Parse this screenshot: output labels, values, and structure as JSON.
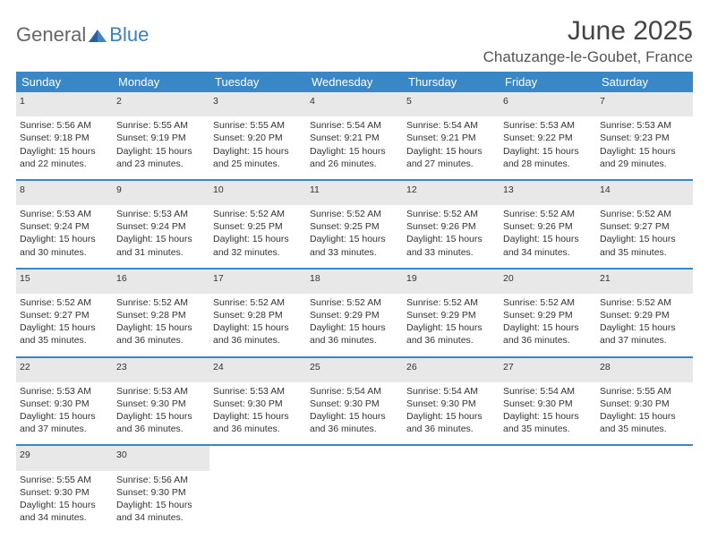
{
  "brand": {
    "part1": "General",
    "part2": "Blue"
  },
  "title": "June 2025",
  "location": "Chatuzange-le-Goubet, France",
  "colors": {
    "header_bg": "#3a87c7",
    "header_text": "#ffffff",
    "daynum_bg": "#e8e8e8",
    "week_border": "#3a87c7",
    "brand_gray": "#666666",
    "brand_blue": "#3a7fc4"
  },
  "weekdays": [
    "Sunday",
    "Monday",
    "Tuesday",
    "Wednesday",
    "Thursday",
    "Friday",
    "Saturday"
  ],
  "weeks": [
    [
      {
        "day": "1",
        "sunrise": "Sunrise: 5:56 AM",
        "sunset": "Sunset: 9:18 PM",
        "d1": "Daylight: 15 hours",
        "d2": "and 22 minutes."
      },
      {
        "day": "2",
        "sunrise": "Sunrise: 5:55 AM",
        "sunset": "Sunset: 9:19 PM",
        "d1": "Daylight: 15 hours",
        "d2": "and 23 minutes."
      },
      {
        "day": "3",
        "sunrise": "Sunrise: 5:55 AM",
        "sunset": "Sunset: 9:20 PM",
        "d1": "Daylight: 15 hours",
        "d2": "and 25 minutes."
      },
      {
        "day": "4",
        "sunrise": "Sunrise: 5:54 AM",
        "sunset": "Sunset: 9:21 PM",
        "d1": "Daylight: 15 hours",
        "d2": "and 26 minutes."
      },
      {
        "day": "5",
        "sunrise": "Sunrise: 5:54 AM",
        "sunset": "Sunset: 9:21 PM",
        "d1": "Daylight: 15 hours",
        "d2": "and 27 minutes."
      },
      {
        "day": "6",
        "sunrise": "Sunrise: 5:53 AM",
        "sunset": "Sunset: 9:22 PM",
        "d1": "Daylight: 15 hours",
        "d2": "and 28 minutes."
      },
      {
        "day": "7",
        "sunrise": "Sunrise: 5:53 AM",
        "sunset": "Sunset: 9:23 PM",
        "d1": "Daylight: 15 hours",
        "d2": "and 29 minutes."
      }
    ],
    [
      {
        "day": "8",
        "sunrise": "Sunrise: 5:53 AM",
        "sunset": "Sunset: 9:24 PM",
        "d1": "Daylight: 15 hours",
        "d2": "and 30 minutes."
      },
      {
        "day": "9",
        "sunrise": "Sunrise: 5:53 AM",
        "sunset": "Sunset: 9:24 PM",
        "d1": "Daylight: 15 hours",
        "d2": "and 31 minutes."
      },
      {
        "day": "10",
        "sunrise": "Sunrise: 5:52 AM",
        "sunset": "Sunset: 9:25 PM",
        "d1": "Daylight: 15 hours",
        "d2": "and 32 minutes."
      },
      {
        "day": "11",
        "sunrise": "Sunrise: 5:52 AM",
        "sunset": "Sunset: 9:25 PM",
        "d1": "Daylight: 15 hours",
        "d2": "and 33 minutes."
      },
      {
        "day": "12",
        "sunrise": "Sunrise: 5:52 AM",
        "sunset": "Sunset: 9:26 PM",
        "d1": "Daylight: 15 hours",
        "d2": "and 33 minutes."
      },
      {
        "day": "13",
        "sunrise": "Sunrise: 5:52 AM",
        "sunset": "Sunset: 9:26 PM",
        "d1": "Daylight: 15 hours",
        "d2": "and 34 minutes."
      },
      {
        "day": "14",
        "sunrise": "Sunrise: 5:52 AM",
        "sunset": "Sunset: 9:27 PM",
        "d1": "Daylight: 15 hours",
        "d2": "and 35 minutes."
      }
    ],
    [
      {
        "day": "15",
        "sunrise": "Sunrise: 5:52 AM",
        "sunset": "Sunset: 9:27 PM",
        "d1": "Daylight: 15 hours",
        "d2": "and 35 minutes."
      },
      {
        "day": "16",
        "sunrise": "Sunrise: 5:52 AM",
        "sunset": "Sunset: 9:28 PM",
        "d1": "Daylight: 15 hours",
        "d2": "and 36 minutes."
      },
      {
        "day": "17",
        "sunrise": "Sunrise: 5:52 AM",
        "sunset": "Sunset: 9:28 PM",
        "d1": "Daylight: 15 hours",
        "d2": "and 36 minutes."
      },
      {
        "day": "18",
        "sunrise": "Sunrise: 5:52 AM",
        "sunset": "Sunset: 9:29 PM",
        "d1": "Daylight: 15 hours",
        "d2": "and 36 minutes."
      },
      {
        "day": "19",
        "sunrise": "Sunrise: 5:52 AM",
        "sunset": "Sunset: 9:29 PM",
        "d1": "Daylight: 15 hours",
        "d2": "and 36 minutes."
      },
      {
        "day": "20",
        "sunrise": "Sunrise: 5:52 AM",
        "sunset": "Sunset: 9:29 PM",
        "d1": "Daylight: 15 hours",
        "d2": "and 36 minutes."
      },
      {
        "day": "21",
        "sunrise": "Sunrise: 5:52 AM",
        "sunset": "Sunset: 9:29 PM",
        "d1": "Daylight: 15 hours",
        "d2": "and 37 minutes."
      }
    ],
    [
      {
        "day": "22",
        "sunrise": "Sunrise: 5:53 AM",
        "sunset": "Sunset: 9:30 PM",
        "d1": "Daylight: 15 hours",
        "d2": "and 37 minutes."
      },
      {
        "day": "23",
        "sunrise": "Sunrise: 5:53 AM",
        "sunset": "Sunset: 9:30 PM",
        "d1": "Daylight: 15 hours",
        "d2": "and 36 minutes."
      },
      {
        "day": "24",
        "sunrise": "Sunrise: 5:53 AM",
        "sunset": "Sunset: 9:30 PM",
        "d1": "Daylight: 15 hours",
        "d2": "and 36 minutes."
      },
      {
        "day": "25",
        "sunrise": "Sunrise: 5:54 AM",
        "sunset": "Sunset: 9:30 PM",
        "d1": "Daylight: 15 hours",
        "d2": "and 36 minutes."
      },
      {
        "day": "26",
        "sunrise": "Sunrise: 5:54 AM",
        "sunset": "Sunset: 9:30 PM",
        "d1": "Daylight: 15 hours",
        "d2": "and 36 minutes."
      },
      {
        "day": "27",
        "sunrise": "Sunrise: 5:54 AM",
        "sunset": "Sunset: 9:30 PM",
        "d1": "Daylight: 15 hours",
        "d2": "and 35 minutes."
      },
      {
        "day": "28",
        "sunrise": "Sunrise: 5:55 AM",
        "sunset": "Sunset: 9:30 PM",
        "d1": "Daylight: 15 hours",
        "d2": "and 35 minutes."
      }
    ],
    [
      {
        "day": "29",
        "sunrise": "Sunrise: 5:55 AM",
        "sunset": "Sunset: 9:30 PM",
        "d1": "Daylight: 15 hours",
        "d2": "and 34 minutes."
      },
      {
        "day": "30",
        "sunrise": "Sunrise: 5:56 AM",
        "sunset": "Sunset: 9:30 PM",
        "d1": "Daylight: 15 hours",
        "d2": "and 34 minutes."
      },
      null,
      null,
      null,
      null,
      null
    ]
  ]
}
